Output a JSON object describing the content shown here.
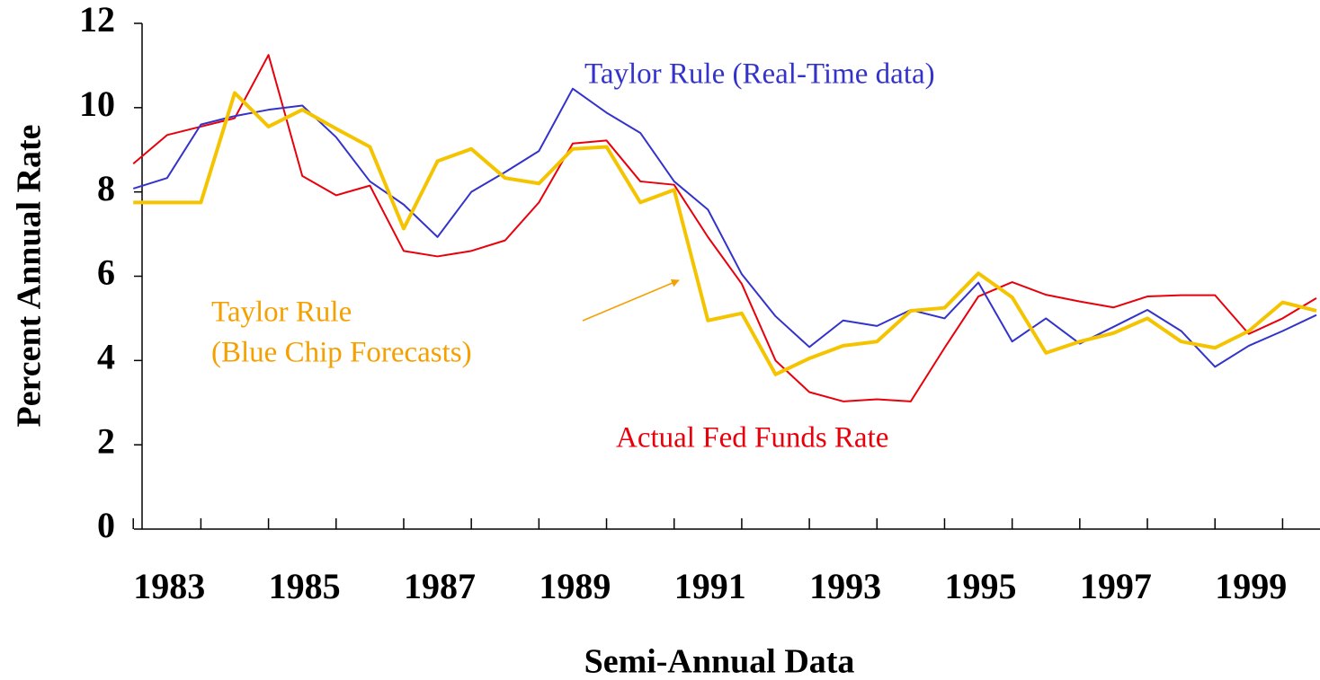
{
  "chart_data": {
    "type": "line",
    "x_label": "Semi-Annual Data",
    "y_label": "Percent Annual Rate",
    "x": [
      1983,
      1983.5,
      1984,
      1984.5,
      1985,
      1985.5,
      1986,
      1986.5,
      1987,
      1987.5,
      1988,
      1988.5,
      1989,
      1989.5,
      1990,
      1990.5,
      1991,
      1991.5,
      1992,
      1992.5,
      1993,
      1993.5,
      1994,
      1994.5,
      1995,
      1995.5,
      1996,
      1996.5,
      1997,
      1997.5,
      1998,
      1998.5,
      1999,
      1999.5,
      2000,
      2000.5
    ],
    "series": [
      {
        "name": "Actual Fed Funds Rate",
        "color": "#e8000b",
        "width": 2,
        "values": [
          8.67,
          9.35,
          9.55,
          9.75,
          11.25,
          8.38,
          7.92,
          8.15,
          6.6,
          6.47,
          6.6,
          6.85,
          7.75,
          9.15,
          9.22,
          8.25,
          8.17,
          6.93,
          5.82,
          4.0,
          3.25,
          3.03,
          3.08,
          3.03,
          4.3,
          5.52,
          5.86,
          5.56,
          5.4,
          5.26,
          5.52,
          5.55,
          5.55,
          4.63,
          5.0,
          5.48
        ]
      },
      {
        "name": "Taylor Rule (Real-Time data)",
        "color": "#3333cc",
        "width": 2,
        "values": [
          8.08,
          8.33,
          9.6,
          9.8,
          9.95,
          10.05,
          9.3,
          8.25,
          7.7,
          6.93,
          8.0,
          8.47,
          8.97,
          10.45,
          9.88,
          9.4,
          8.25,
          7.58,
          6.05,
          5.05,
          4.32,
          4.95,
          4.82,
          5.2,
          5.0,
          5.85,
          4.45,
          5.0,
          4.4,
          4.8,
          5.2,
          4.7,
          3.85,
          4.35,
          4.7,
          5.08
        ]
      },
      {
        "name": "Taylor Rule (Blue Chip Forecasts)",
        "color": "#f5c400",
        "width": 4,
        "values": [
          7.75,
          7.75,
          7.75,
          10.35,
          9.55,
          9.95,
          9.5,
          9.07,
          7.13,
          8.73,
          9.02,
          8.33,
          8.2,
          9.02,
          9.07,
          7.75,
          8.05,
          4.95,
          5.12,
          3.67,
          4.05,
          4.35,
          4.45,
          5.18,
          5.25,
          6.07,
          5.5,
          4.18,
          4.45,
          4.65,
          5.0,
          4.45,
          4.3,
          4.7,
          5.38,
          5.18
        ]
      }
    ],
    "annotations": [
      {
        "text": "Taylor Rule (Real-Time data)",
        "color": "#3333cc"
      },
      {
        "text": "Taylor Rule",
        "color": "#f5a000"
      },
      {
        "text": "(Blue Chip Forecasts)",
        "color": "#f5a000"
      },
      {
        "text": "Actual Fed Funds Rate",
        "color": "#e8000b"
      }
    ],
    "xlim": [
      1983.13,
      2000.5
    ],
    "ylim": [
      0,
      12
    ],
    "yticks": [
      0,
      2,
      4,
      6,
      8,
      10,
      12
    ],
    "xticks": [
      1983,
      1985,
      1987,
      1989,
      1991,
      1993,
      1995,
      1997,
      1999
    ],
    "xminorticks": [
      1984,
      1986,
      1988,
      1990,
      1992,
      1994,
      1996,
      1998,
      2000
    ],
    "legend": false,
    "grid": false
  }
}
